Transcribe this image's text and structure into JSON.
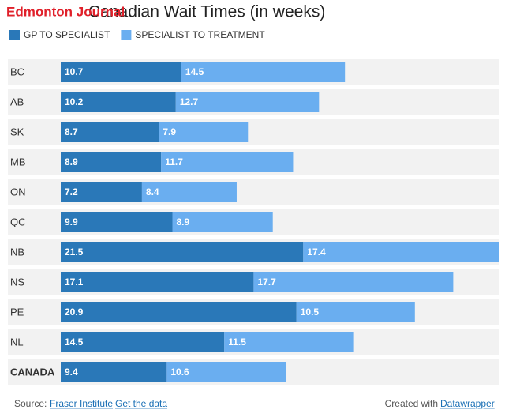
{
  "chart_data": {
    "type": "stacked-hbar",
    "title": "Canadian Wait Times (in weeks)",
    "overlay": "Edmonton Journal",
    "categories": [
      "BC",
      "AB",
      "SK",
      "MB",
      "ON",
      "QC",
      "NB",
      "NS",
      "PE",
      "NL",
      "CANADA"
    ],
    "series": [
      {
        "name": "GP TO SPECIALIST",
        "color": "#2a78b8",
        "values": [
          10.7,
          10.2,
          8.7,
          8.9,
          7.2,
          9.9,
          21.5,
          17.1,
          20.9,
          14.5,
          9.4
        ]
      },
      {
        "name": "SPECIALIST TO TREATMENT",
        "color": "#6aaef0",
        "values": [
          14.5,
          12.7,
          7.9,
          11.7,
          8.4,
          8.9,
          17.4,
          17.7,
          10.5,
          11.5,
          10.6
        ]
      }
    ]
  },
  "footer": {
    "source_label": "Source:",
    "source": "Fraser Institute",
    "data_link": "Get the data",
    "credit_label": "Created with",
    "credit": "Datawrapper"
  }
}
